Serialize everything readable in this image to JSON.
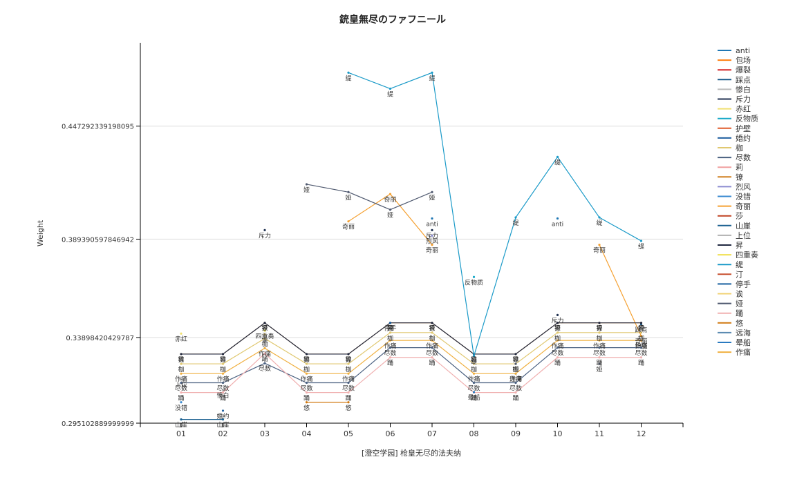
{
  "chart_data": {
    "type": "line",
    "title": "銃皇無尽のファフニール",
    "xlabel": "[澄空学园] 枪皇无尽的法夫纳",
    "ylabel": "Weight",
    "categories": [
      "01",
      "02",
      "03",
      "04",
      "05",
      "06",
      "07",
      "08",
      "09",
      "10",
      "11",
      "12"
    ],
    "ylim": [
      0.295102889999999,
      0.49
    ],
    "yticks": [
      0.295102889999999,
      0.33898420429787,
      0.389390597846942,
      0.447292339198095
    ],
    "ytick_labels": [
      "0.295102889999999",
      "0.33898420429787",
      "0.389390597846942",
      "0.447292339198095"
    ],
    "grid": true,
    "legend_position": "right",
    "series": [
      {
        "name": "anti",
        "color": "#1f77b4",
        "values": [
          null,
          null,
          null,
          null,
          null,
          null,
          0.4,
          null,
          null,
          0.4,
          null,
          null
        ]
      },
      {
        "name": "包场",
        "color": "#ff7f0e",
        "values": [
          null,
          null,
          null,
          null,
          null,
          null,
          null,
          null,
          null,
          null,
          null,
          null
        ]
      },
      {
        "name": "爆裂",
        "color": "#d62728",
        "values": [
          null,
          null,
          null,
          null,
          null,
          null,
          null,
          null,
          null,
          null,
          null,
          null
        ]
      },
      {
        "name": "踩点",
        "color": "#1a5a8a",
        "values": [
          null,
          null,
          null,
          null,
          null,
          null,
          null,
          null,
          null,
          null,
          null,
          0.3457
        ]
      },
      {
        "name": "惨白",
        "color": "#bbbbbb",
        "values": [
          null,
          0.312,
          null,
          null,
          null,
          null,
          null,
          null,
          null,
          null,
          null,
          null
        ]
      },
      {
        "name": "斥力",
        "color": "#1f3050",
        "values": [
          null,
          null,
          0.394,
          null,
          null,
          null,
          0.394,
          null,
          null,
          0.3505,
          null,
          null
        ]
      },
      {
        "name": "赤红",
        "color": "#f0e070",
        "values": [
          0.341,
          null,
          null,
          null,
          null,
          null,
          null,
          null,
          null,
          null,
          null,
          null
        ]
      },
      {
        "name": "反物质",
        "color": "#17a8c8",
        "values": [
          null,
          null,
          null,
          null,
          null,
          null,
          null,
          0.37,
          null,
          null,
          null,
          null
        ]
      },
      {
        "name": "护壁",
        "color": "#e05a2a",
        "values": [
          null,
          null,
          null,
          null,
          null,
          null,
          null,
          null,
          null,
          null,
          null,
          0.3375
        ]
      },
      {
        "name": "婚约",
        "color": "#1f5fa0",
        "values": [
          null,
          0.3015,
          null,
          null,
          null,
          null,
          null,
          null,
          null,
          null,
          null,
          null
        ]
      },
      {
        "name": "枷",
        "color": "#e0c870",
        "values": [
          0.3255,
          0.3255,
          0.3385,
          0.3255,
          0.3255,
          0.3415,
          0.3415,
          0.3255,
          0.3255,
          0.3415,
          0.3415,
          0.3415
        ]
      },
      {
        "name": "尽数",
        "color": "#4a6080",
        "values": [
          0.3158,
          0.3158,
          0.3258,
          0.3158,
          0.3158,
          0.3338,
          0.3338,
          0.3158,
          0.3158,
          0.3338,
          0.3338,
          0.3338
        ]
      },
      {
        "name": "莉",
        "color": "#f0a0a0",
        "values": [
          null,
          null,
          null,
          null,
          null,
          null,
          null,
          null,
          null,
          null,
          null,
          null
        ]
      },
      {
        "name": "镣",
        "color": "#d08020",
        "values": [
          0.3305,
          0.3305,
          0.3465,
          0.3305,
          0.3305,
          0.3465,
          0.3465,
          0.3305,
          0.3305,
          0.3465,
          0.3465,
          0.3465
        ]
      },
      {
        "name": "烈风",
        "color": "#8c8cd0",
        "values": [
          null,
          null,
          null,
          null,
          null,
          null,
          0.3912,
          null,
          null,
          null,
          null,
          null
        ]
      },
      {
        "name": "没错",
        "color": "#3a8ad0",
        "values": [
          0.3058,
          null,
          null,
          null,
          null,
          null,
          null,
          null,
          null,
          null,
          null,
          null
        ]
      },
      {
        "name": "奇丽",
        "color": "#f5a030",
        "values": [
          null,
          null,
          null,
          null,
          0.3985,
          0.4125,
          0.3865,
          null,
          null,
          null,
          0.3865,
          0.3398
        ]
      },
      {
        "name": "莎",
        "color": "#c04020",
        "values": [
          null,
          null,
          null,
          null,
          null,
          null,
          null,
          null,
          null,
          null,
          null,
          null
        ]
      },
      {
        "name": "山崖",
        "color": "#1a6090",
        "values": [
          0.297,
          0.297,
          null,
          null,
          null,
          null,
          null,
          null,
          null,
          null,
          null,
          null
        ]
      },
      {
        "name": "上位",
        "color": "#b0b0b0",
        "values": [
          0.3175,
          null,
          null,
          null,
          null,
          null,
          null,
          null,
          null,
          null,
          null,
          null
        ]
      },
      {
        "name": "昇",
        "color": "#202840",
        "values": [
          0.3305,
          0.3305,
          0.3465,
          0.3305,
          0.3305,
          0.3465,
          0.3465,
          0.3305,
          0.3305,
          0.3465,
          0.3465,
          0.3465
        ]
      },
      {
        "name": "四重奏",
        "color": "#f0e050",
        "values": [
          null,
          null,
          0.3425,
          null,
          null,
          null,
          null,
          null,
          null,
          null,
          null,
          null
        ]
      },
      {
        "name": "缇",
        "color": "#1a9ac8",
        "values": [
          null,
          null,
          null,
          null,
          0.4747,
          0.4665,
          0.4747,
          0.3295,
          0.4005,
          0.4315,
          0.4005,
          0.3885
        ]
      },
      {
        "name": "汀",
        "color": "#c85030",
        "values": [
          null,
          null,
          null,
          null,
          null,
          null,
          null,
          null,
          null,
          null,
          null,
          null
        ]
      },
      {
        "name": "停手",
        "color": "#1a60a0",
        "values": [
          null,
          null,
          null,
          null,
          null,
          0.3465,
          null,
          null,
          null,
          null,
          null,
          null
        ]
      },
      {
        "name": "诶",
        "color": "#f0d070",
        "values": [
          null,
          null,
          0.3405,
          null,
          null,
          null,
          null,
          null,
          null,
          null,
          null,
          null
        ]
      },
      {
        "name": "娅",
        "color": "#505a70",
        "values": [
          null,
          null,
          null,
          0.4175,
          0.4135,
          0.4045,
          0.4135,
          null,
          0.3255,
          null,
          0.3255,
          null
        ]
      },
      {
        "name": "踊",
        "color": "#f0b0b0",
        "values": [
          0.3108,
          0.3108,
          0.3308,
          0.3108,
          0.3108,
          0.3288,
          0.3288,
          0.3108,
          0.3108,
          0.3288,
          0.3288,
          0.3288
        ]
      },
      {
        "name": "悠",
        "color": "#d07810",
        "values": [
          null,
          null,
          null,
          0.3058,
          0.3058,
          null,
          null,
          null,
          null,
          null,
          null,
          null
        ]
      },
      {
        "name": "远海",
        "color": "#5a8ab0",
        "values": [
          null,
          null,
          null,
          null,
          null,
          null,
          null,
          null,
          0.3205,
          null,
          null,
          null
        ]
      },
      {
        "name": "晕船",
        "color": "#2a7ac0",
        "values": [
          null,
          null,
          null,
          null,
          null,
          null,
          null,
          0.311,
          null,
          null,
          null,
          null
        ]
      },
      {
        "name": "作痛",
        "color": "#f0b040",
        "values": [
          0.3205,
          0.3205,
          0.3335,
          0.3205,
          0.3205,
          0.3375,
          0.3375,
          0.3205,
          0.3205,
          0.3375,
          0.3375,
          0.3375
        ]
      }
    ]
  }
}
